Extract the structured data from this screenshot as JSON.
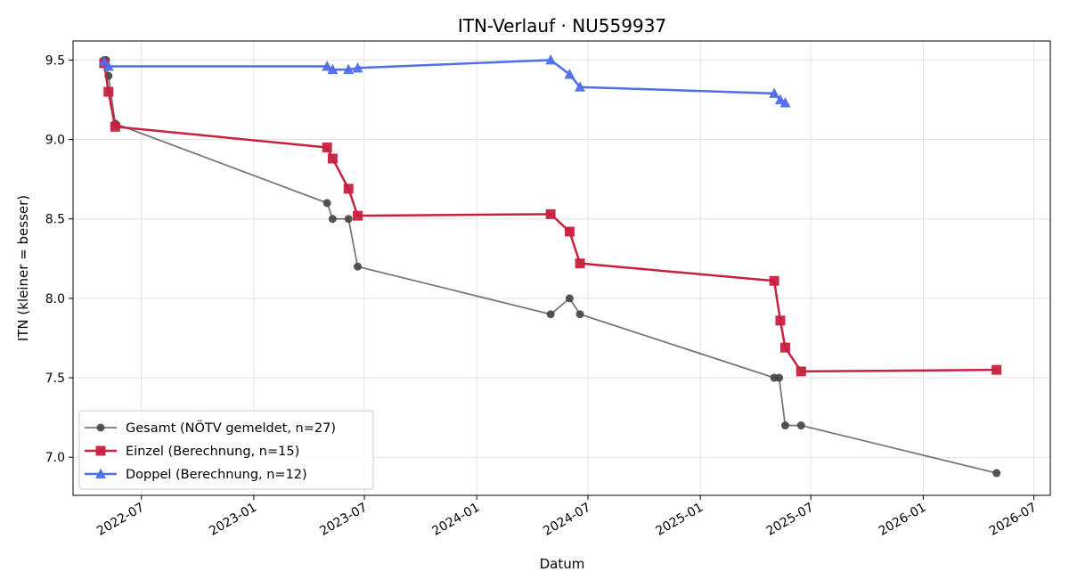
{
  "chart_data": {
    "type": "line",
    "title": "ITN-Verlauf · NU559937",
    "xlabel": "Datum",
    "ylabel": "ITN  (kleiner = besser)",
    "xlim": [
      "2022-03-11",
      "2026-07-28"
    ],
    "ylim": [
      6.76,
      9.62
    ],
    "x_ticks": [
      "2022-07",
      "2023-01",
      "2023-07",
      "2024-01",
      "2024-07",
      "2025-01",
      "2025-07",
      "2026-01",
      "2026-07"
    ],
    "y_ticks": [
      7.0,
      7.5,
      8.0,
      8.5,
      9.0,
      9.5
    ],
    "grid": true,
    "legend_position": "lower-left",
    "series": [
      {
        "name": "Gesamt (NÖTV gemeldet, n=27)",
        "color": "#444444",
        "marker": "circle",
        "points": [
          {
            "x": "2022-05-01",
            "y": 9.5
          },
          {
            "x": "2022-05-04",
            "y": 9.5
          },
          {
            "x": "2022-05-08",
            "y": 9.4
          },
          {
            "x": "2022-05-19",
            "y": 9.1
          },
          {
            "x": "2023-05-01",
            "y": 8.6
          },
          {
            "x": "2023-05-10",
            "y": 8.5
          },
          {
            "x": "2023-06-05",
            "y": 8.5
          },
          {
            "x": "2023-06-20",
            "y": 8.2
          },
          {
            "x": "2024-05-01",
            "y": 7.9
          },
          {
            "x": "2024-06-01",
            "y": 8.0
          },
          {
            "x": "2024-06-18",
            "y": 7.9
          },
          {
            "x": "2025-05-02",
            "y": 7.5
          },
          {
            "x": "2025-05-10",
            "y": 7.5
          },
          {
            "x": "2025-05-20",
            "y": 7.2
          },
          {
            "x": "2025-06-15",
            "y": 7.2
          },
          {
            "x": "2026-05-01",
            "y": 6.9
          }
        ]
      },
      {
        "name": "Einzel (Berechnung, n=15)",
        "color": "#c8203f",
        "marker": "square",
        "points": [
          {
            "x": "2022-05-01",
            "y": 9.48
          },
          {
            "x": "2022-05-08",
            "y": 9.3
          },
          {
            "x": "2022-05-19",
            "y": 9.08
          },
          {
            "x": "2023-05-01",
            "y": 8.95
          },
          {
            "x": "2023-05-10",
            "y": 8.88
          },
          {
            "x": "2023-06-05",
            "y": 8.69
          },
          {
            "x": "2023-06-20",
            "y": 8.52
          },
          {
            "x": "2024-05-01",
            "y": 8.53
          },
          {
            "x": "2024-06-01",
            "y": 8.42
          },
          {
            "x": "2024-06-18",
            "y": 8.22
          },
          {
            "x": "2025-05-02",
            "y": 8.11
          },
          {
            "x": "2025-05-12",
            "y": 7.86
          },
          {
            "x": "2025-05-20",
            "y": 7.69
          },
          {
            "x": "2025-06-15",
            "y": 7.54
          },
          {
            "x": "2026-05-01",
            "y": 7.55
          }
        ]
      },
      {
        "name": "Doppel (Berechnung, n=12)",
        "color": "#4f6ee8",
        "marker": "triangle",
        "points": [
          {
            "x": "2022-05-01",
            "y": 9.49
          },
          {
            "x": "2022-05-08",
            "y": 9.46
          },
          {
            "x": "2023-05-01",
            "y": 9.46
          },
          {
            "x": "2023-05-10",
            "y": 9.44
          },
          {
            "x": "2023-06-05",
            "y": 9.44
          },
          {
            "x": "2023-06-20",
            "y": 9.45
          },
          {
            "x": "2024-05-01",
            "y": 9.5
          },
          {
            "x": "2024-06-01",
            "y": 9.41
          },
          {
            "x": "2024-06-18",
            "y": 9.33
          },
          {
            "x": "2025-05-02",
            "y": 9.29
          },
          {
            "x": "2025-05-12",
            "y": 9.25
          },
          {
            "x": "2025-05-20",
            "y": 9.23
          }
        ]
      }
    ]
  }
}
